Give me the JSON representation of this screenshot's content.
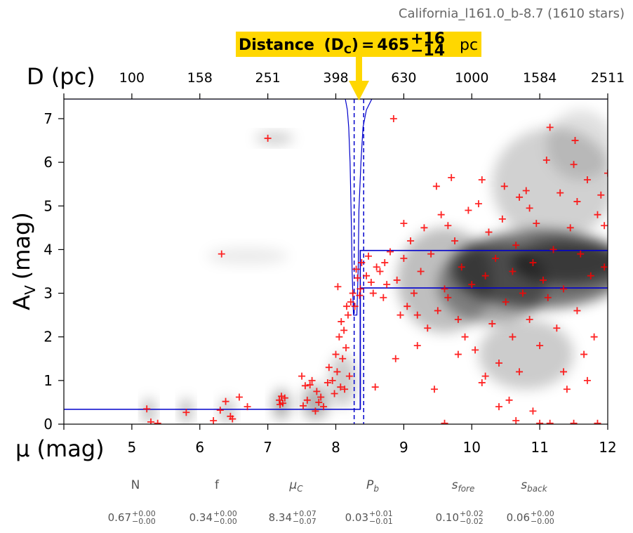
{
  "header": {
    "title": "California_l161.0_b-8.7 (1610 stars)"
  },
  "distance_box": {
    "label": "Distance",
    "symbol": "D",
    "symbol_sub": "C",
    "equals": "=",
    "value": "465",
    "plus": "+16",
    "minus": "−14",
    "unit": "pc",
    "color": "#FFD700"
  },
  "chart_data": {
    "type": "scatter",
    "xlabel": "μ (mag)",
    "ylabel": "A",
    "ylabel_sub": "V",
    "ylabel_unit": "(mag)",
    "top_xlabel": "D (pc)",
    "xlim": [
      4,
      12
    ],
    "ylim": [
      0,
      7.45
    ],
    "x_ticks": [
      "5",
      "6",
      "7",
      "8",
      "9",
      "10",
      "11",
      "12"
    ],
    "x_tick_values": [
      5,
      6,
      7,
      8,
      9,
      10,
      11,
      12
    ],
    "y_ticks": [
      "0",
      "1",
      "2",
      "3",
      "4",
      "5",
      "6",
      "7"
    ],
    "y_tick_values": [
      0,
      1,
      2,
      3,
      4,
      5,
      6,
      7
    ],
    "top_ticks": [
      "100",
      "158",
      "251",
      "398",
      "630",
      "1000",
      "1584",
      "2511"
    ],
    "top_tick_mu": [
      5,
      6,
      7,
      8,
      9,
      10,
      11,
      12
    ],
    "grid": false,
    "colors": {
      "points": "#ff0000",
      "model": "#0000cc",
      "density": "#000000"
    },
    "model_line": {
      "mu_cloud": 8.34,
      "mu_cloud_lo": 8.27,
      "mu_cloud_hi": 8.41,
      "av_fore": 0.34,
      "av_back_low": 3.12,
      "av_back_high": 3.98
    },
    "stars": [
      [
        5.22,
        0.35
      ],
      [
        5.28,
        0.05
      ],
      [
        5.38,
        0.02
      ],
      [
        5.8,
        0.27
      ],
      [
        6.3,
        0.32
      ],
      [
        6.32,
        3.9
      ],
      [
        6.38,
        0.52
      ],
      [
        6.2,
        0.08
      ],
      [
        6.45,
        0.18
      ],
      [
        6.48,
        0.12
      ],
      [
        6.58,
        0.62
      ],
      [
        6.7,
        0.4
      ],
      [
        7.0,
        6.55
      ],
      [
        7.17,
        0.55
      ],
      [
        7.2,
        0.64
      ],
      [
        7.22,
        0.48
      ],
      [
        7.25,
        0.6
      ],
      [
        7.18,
        0.45
      ],
      [
        7.5,
        1.1
      ],
      [
        7.55,
        0.88
      ],
      [
        7.62,
        0.9
      ],
      [
        7.58,
        0.55
      ],
      [
        7.52,
        0.42
      ],
      [
        7.65,
        1.0
      ],
      [
        7.72,
        0.75
      ],
      [
        7.75,
        0.5
      ],
      [
        7.78,
        0.62
      ],
      [
        7.82,
        0.4
      ],
      [
        7.88,
        0.95
      ],
      [
        7.7,
        0.3
      ],
      [
        7.9,
        1.3
      ],
      [
        7.95,
        1.0
      ],
      [
        7.98,
        0.7
      ],
      [
        8.0,
        1.6
      ],
      [
        8.02,
        1.2
      ],
      [
        8.05,
        2.0
      ],
      [
        8.07,
        0.85
      ],
      [
        8.1,
        1.5
      ],
      [
        8.12,
        2.15
      ],
      [
        8.15,
        1.75
      ],
      [
        8.18,
        2.5
      ],
      [
        8.2,
        1.1
      ],
      [
        8.22,
        2.8
      ],
      [
        8.25,
        3.0
      ],
      [
        8.03,
        3.15
      ],
      [
        8.08,
        2.35
      ],
      [
        8.13,
        0.8
      ],
      [
        8.16,
        2.7
      ],
      [
        8.28,
        2.7
      ],
      [
        8.3,
        3.55
      ],
      [
        8.32,
        3.35
      ],
      [
        8.35,
        2.95
      ],
      [
        8.38,
        3.7
      ],
      [
        8.36,
        3.1
      ],
      [
        8.45,
        3.4
      ],
      [
        8.48,
        3.85
      ],
      [
        8.52,
        3.25
      ],
      [
        8.55,
        3.0
      ],
      [
        8.58,
        0.85
      ],
      [
        8.6,
        3.6
      ],
      [
        8.65,
        3.5
      ],
      [
        8.7,
        2.9
      ],
      [
        8.72,
        3.7
      ],
      [
        8.75,
        3.2
      ],
      [
        8.8,
        3.95
      ],
      [
        8.85,
        7.0
      ],
      [
        8.88,
        1.5
      ],
      [
        8.9,
        3.3
      ],
      [
        8.95,
        2.5
      ],
      [
        9.0,
        3.8
      ],
      [
        9.05,
        2.7
      ],
      [
        9.1,
        4.2
      ],
      [
        9.15,
        3.0
      ],
      [
        9.2,
        1.8
      ],
      [
        9.25,
        3.5
      ],
      [
        9.3,
        4.5
      ],
      [
        9.35,
        2.2
      ],
      [
        9.4,
        3.9
      ],
      [
        9.45,
        0.8
      ],
      [
        9.48,
        5.45
      ],
      [
        9.5,
        2.6
      ],
      [
        9.55,
        4.8
      ],
      [
        9.6,
        3.1
      ],
      [
        9.65,
        2.9
      ],
      [
        9.7,
        5.65
      ],
      [
        9.75,
        4.2
      ],
      [
        9.8,
        2.4
      ],
      [
        9.85,
        3.6
      ],
      [
        9.9,
        2.0
      ],
      [
        9.95,
        4.9
      ],
      [
        10.0,
        3.2
      ],
      [
        10.05,
        1.7
      ],
      [
        10.1,
        5.05
      ],
      [
        10.15,
        0.95
      ],
      [
        10.2,
        3.4
      ],
      [
        10.25,
        4.4
      ],
      [
        10.3,
        2.3
      ],
      [
        10.35,
        3.8
      ],
      [
        10.4,
        1.4
      ],
      [
        10.45,
        4.7
      ],
      [
        10.48,
        5.45
      ],
      [
        10.5,
        2.8
      ],
      [
        10.55,
        0.55
      ],
      [
        10.6,
        3.5
      ],
      [
        10.65,
        4.1
      ],
      [
        10.7,
        1.2
      ],
      [
        10.75,
        3.0
      ],
      [
        10.8,
        5.35
      ],
      [
        10.85,
        2.4
      ],
      [
        10.9,
        3.7
      ],
      [
        10.95,
        4.6
      ],
      [
        11.0,
        1.8
      ],
      [
        11.05,
        3.3
      ],
      [
        11.1,
        6.05
      ],
      [
        11.12,
        2.9
      ],
      [
        11.15,
        6.8
      ],
      [
        11.2,
        4.0
      ],
      [
        11.25,
        2.2
      ],
      [
        11.3,
        5.3
      ],
      [
        11.35,
        3.1
      ],
      [
        11.4,
        0.8
      ],
      [
        11.45,
        4.5
      ],
      [
        11.5,
        5.95
      ],
      [
        11.52,
        6.5
      ],
      [
        11.55,
        2.6
      ],
      [
        11.6,
        3.9
      ],
      [
        11.65,
        1.6
      ],
      [
        11.7,
        5.6
      ],
      [
        11.75,
        3.4
      ],
      [
        11.8,
        2.0
      ],
      [
        11.85,
        4.8
      ],
      [
        11.9,
        5.25
      ],
      [
        11.95,
        3.6
      ],
      [
        12.0,
        5.75
      ],
      [
        10.65,
        0.08
      ],
      [
        11.15,
        0.02
      ],
      [
        11.85,
        0.02
      ],
      [
        9.6,
        0.02
      ],
      [
        10.4,
        0.4
      ],
      [
        10.9,
        0.3
      ],
      [
        11.0,
        0.02
      ],
      [
        11.5,
        0.02
      ],
      [
        11.35,
        1.2
      ],
      [
        10.2,
        1.1
      ],
      [
        9.2,
        2.5
      ],
      [
        9.8,
        1.6
      ],
      [
        10.6,
        2.0
      ],
      [
        11.7,
        1.0
      ],
      [
        10.15,
        5.6
      ],
      [
        10.85,
        4.95
      ],
      [
        11.55,
        5.1
      ],
      [
        11.95,
        4.55
      ],
      [
        9.65,
        4.55
      ],
      [
        10.7,
        5.2
      ],
      [
        9.0,
        4.6
      ]
    ]
  },
  "params": [
    {
      "name": "N",
      "value": "0.67",
      "plus": "+0.00",
      "minus": "−0.00"
    },
    {
      "name": "f",
      "value": "0.34",
      "plus": "+0.00",
      "minus": "−0.00"
    },
    {
      "name": "μ",
      "sub": "C",
      "value": "8.34",
      "plus": "+0.07",
      "minus": "−0.07"
    },
    {
      "name": "P",
      "sub": "b",
      "value": "0.03",
      "plus": "+0.01",
      "minus": "−0.01"
    },
    {
      "name": "s",
      "sub": "fore",
      "value": "0.10",
      "plus": "+0.02",
      "minus": "−0.02"
    },
    {
      "name": "s",
      "sub": "back",
      "value": "0.06",
      "plus": "+0.00",
      "minus": "−0.00"
    }
  ]
}
